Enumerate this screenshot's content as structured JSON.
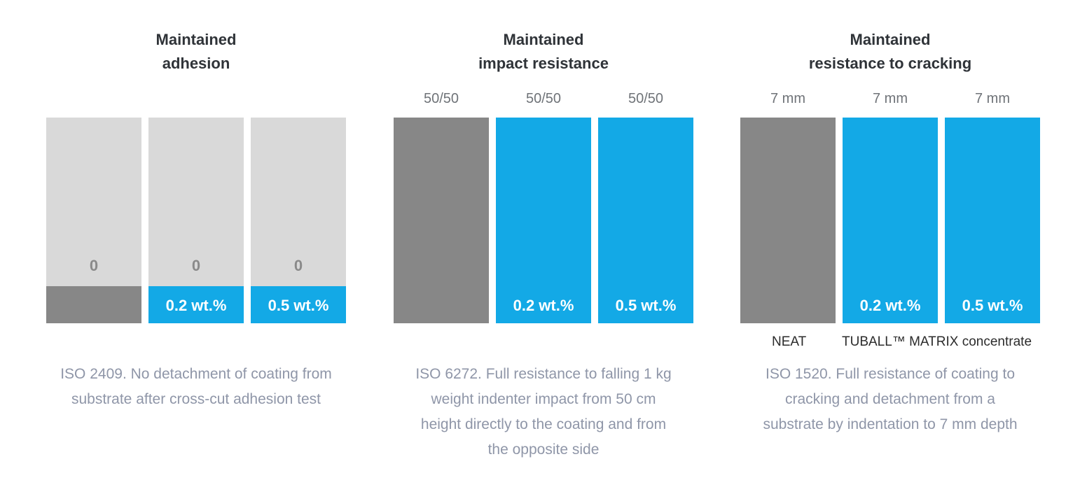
{
  "colors": {
    "neat": "#878787",
    "tuball": "#13a9e6",
    "empty": "#d9d9d9"
  },
  "legend": {
    "neat": "NEAT",
    "tuball": "TUBALL™ MATRIX concentrate"
  },
  "chart_data": [
    {
      "type": "bar",
      "title_line1": "Maintained",
      "title_line2": "adhesion",
      "caption_lines": [
        "ISO 2409. No detachment of coating from",
        "substrate after cross-cut adhesion test"
      ],
      "bars": [
        {
          "group": "neat",
          "fill_fraction": 0.18,
          "fill_label": "",
          "value_label": "0",
          "top_label": ""
        },
        {
          "group": "tuball",
          "fill_fraction": 0.18,
          "fill_label": "0.2 wt.%",
          "value_label": "0",
          "top_label": ""
        },
        {
          "group": "tuball",
          "fill_fraction": 0.18,
          "fill_label": "0.5 wt.%",
          "value_label": "0",
          "top_label": ""
        }
      ]
    },
    {
      "type": "bar",
      "title_line1": "Maintained",
      "title_line2": "impact resistance",
      "caption_lines": [
        "ISO 6272. Full resistance to falling 1 kg",
        "weight indenter impact from 50 cm",
        "height directly to the coating and from",
        "the opposite side"
      ],
      "bars": [
        {
          "group": "neat",
          "fill_fraction": 1.0,
          "fill_label": "",
          "value_label": "",
          "top_label": "50/50"
        },
        {
          "group": "tuball",
          "fill_fraction": 1.0,
          "fill_label": "0.2 wt.%",
          "value_label": "",
          "top_label": "50/50"
        },
        {
          "group": "tuball",
          "fill_fraction": 1.0,
          "fill_label": "0.5 wt.%",
          "value_label": "",
          "top_label": "50/50"
        }
      ]
    },
    {
      "type": "bar",
      "title_line1": "Maintained",
      "title_line2": "resistance to cracking",
      "caption_lines": [
        "ISO 1520. Full resistance of coating to",
        "cracking and detachment from a",
        "substrate by indentation to 7 mm depth"
      ],
      "bars": [
        {
          "group": "neat",
          "fill_fraction": 1.0,
          "fill_label": "",
          "value_label": "",
          "top_label": "7 mm"
        },
        {
          "group": "tuball",
          "fill_fraction": 1.0,
          "fill_label": "0.2 wt.%",
          "value_label": "",
          "top_label": "7 mm"
        },
        {
          "group": "tuball",
          "fill_fraction": 1.0,
          "fill_label": "0.5 wt.%",
          "value_label": "",
          "top_label": "7 mm"
        }
      ]
    }
  ]
}
